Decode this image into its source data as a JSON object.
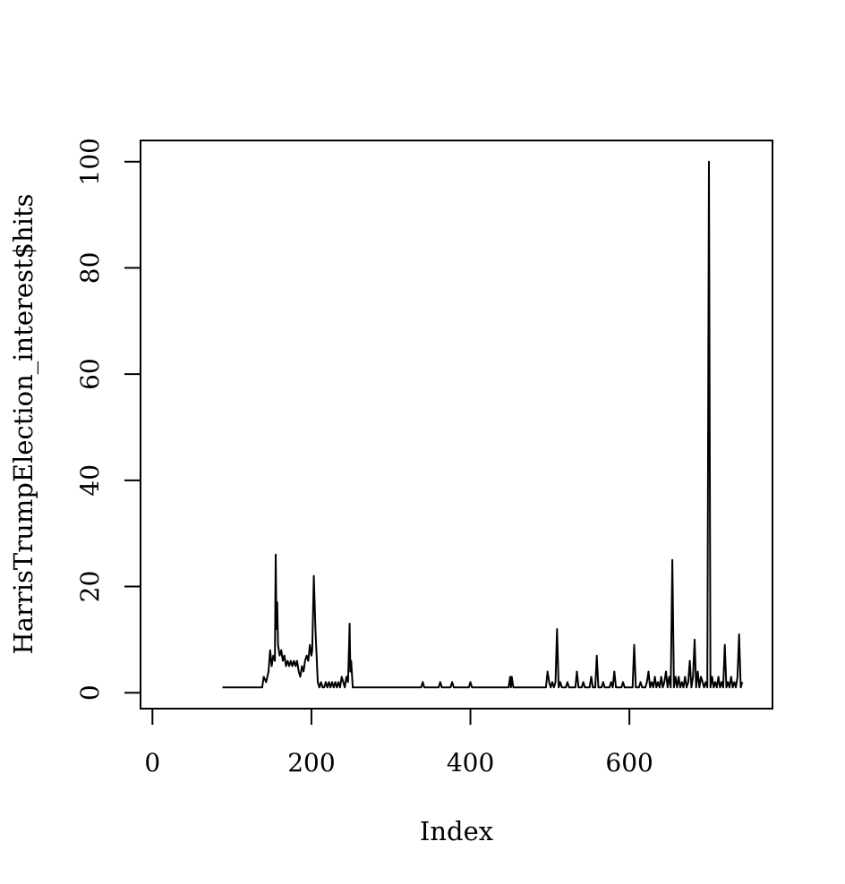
{
  "chart_data": {
    "type": "line",
    "title": "",
    "xlabel": "Index",
    "ylabel": "HarrisTrumpElection_interest$hits",
    "xlim": [
      -15,
      780
    ],
    "ylim": [
      -3,
      104
    ],
    "x_ticks": [
      0,
      200,
      400,
      600
    ],
    "y_ticks": [
      0,
      20,
      40,
      60,
      80,
      100
    ],
    "x_tick_labels": [
      "0",
      "200",
      "400",
      "600"
    ],
    "y_tick_labels": [
      "0",
      "20",
      "40",
      "60",
      "80",
      "100"
    ],
    "grid": false,
    "legend": "none",
    "line_color": "#000000",
    "series": [
      {
        "points": [
          [
            88,
            1
          ],
          [
            89,
            1
          ],
          [
            138,
            1
          ],
          [
            140,
            3
          ],
          [
            143,
            2
          ],
          [
            146,
            4
          ],
          [
            148,
            8
          ],
          [
            150,
            5
          ],
          [
            152,
            7
          ],
          [
            154,
            6
          ],
          [
            155,
            26
          ],
          [
            156,
            12
          ],
          [
            157,
            17
          ],
          [
            158,
            9
          ],
          [
            160,
            7
          ],
          [
            162,
            8
          ],
          [
            164,
            6
          ],
          [
            166,
            7
          ],
          [
            168,
            5
          ],
          [
            170,
            6
          ],
          [
            172,
            5
          ],
          [
            174,
            6
          ],
          [
            176,
            5
          ],
          [
            178,
            6
          ],
          [
            180,
            5
          ],
          [
            182,
            6
          ],
          [
            184,
            4
          ],
          [
            186,
            3
          ],
          [
            188,
            5
          ],
          [
            190,
            4
          ],
          [
            192,
            6
          ],
          [
            194,
            7
          ],
          [
            196,
            6
          ],
          [
            198,
            9
          ],
          [
            200,
            7
          ],
          [
            201,
            8
          ],
          [
            203,
            22
          ],
          [
            205,
            12
          ],
          [
            208,
            2
          ],
          [
            210,
            1
          ],
          [
            212,
            2
          ],
          [
            214,
            1
          ],
          [
            216,
            1
          ],
          [
            218,
            2
          ],
          [
            220,
            1
          ],
          [
            222,
            2
          ],
          [
            224,
            1
          ],
          [
            226,
            2
          ],
          [
            228,
            1
          ],
          [
            230,
            2
          ],
          [
            232,
            1
          ],
          [
            234,
            2
          ],
          [
            236,
            1
          ],
          [
            238,
            3
          ],
          [
            240,
            2
          ],
          [
            242,
            1
          ],
          [
            244,
            3
          ],
          [
            246,
            2
          ],
          [
            248,
            13
          ],
          [
            249,
            4
          ],
          [
            250,
            6
          ],
          [
            252,
            1
          ],
          [
            260,
            1
          ],
          [
            300,
            1
          ],
          [
            338,
            1
          ],
          [
            340,
            2
          ],
          [
            342,
            1
          ],
          [
            360,
            1
          ],
          [
            362,
            2
          ],
          [
            364,
            1
          ],
          [
            375,
            1
          ],
          [
            377,
            2
          ],
          [
            379,
            1
          ],
          [
            398,
            1
          ],
          [
            400,
            2
          ],
          [
            402,
            1
          ],
          [
            448,
            1
          ],
          [
            450,
            3
          ],
          [
            451,
            1
          ],
          [
            452,
            3
          ],
          [
            454,
            1
          ],
          [
            495,
            1
          ],
          [
            497,
            4
          ],
          [
            499,
            2
          ],
          [
            501,
            1
          ],
          [
            503,
            2
          ],
          [
            505,
            1
          ],
          [
            507,
            2
          ],
          [
            509,
            12
          ],
          [
            511,
            1
          ],
          [
            513,
            2
          ],
          [
            515,
            1
          ],
          [
            520,
            1
          ],
          [
            522,
            2
          ],
          [
            524,
            1
          ],
          [
            532,
            1
          ],
          [
            534,
            4
          ],
          [
            536,
            1
          ],
          [
            540,
            1
          ],
          [
            542,
            2
          ],
          [
            544,
            1
          ],
          [
            550,
            1
          ],
          [
            552,
            3
          ],
          [
            554,
            1
          ],
          [
            557,
            1
          ],
          [
            559,
            7
          ],
          [
            561,
            1
          ],
          [
            565,
            1
          ],
          [
            567,
            2
          ],
          [
            569,
            1
          ],
          [
            575,
            1
          ],
          [
            577,
            2
          ],
          [
            579,
            1
          ],
          [
            581,
            4
          ],
          [
            583,
            1
          ],
          [
            590,
            1
          ],
          [
            592,
            2
          ],
          [
            594,
            1
          ],
          [
            604,
            1
          ],
          [
            606,
            9
          ],
          [
            608,
            1
          ],
          [
            612,
            1
          ],
          [
            614,
            2
          ],
          [
            616,
            1
          ],
          [
            620,
            1
          ],
          [
            622,
            2
          ],
          [
            624,
            4
          ],
          [
            626,
            1
          ],
          [
            628,
            2
          ],
          [
            630,
            1
          ],
          [
            632,
            3
          ],
          [
            634,
            1
          ],
          [
            636,
            2
          ],
          [
            638,
            1
          ],
          [
            640,
            3
          ],
          [
            642,
            1
          ],
          [
            644,
            2
          ],
          [
            646,
            4
          ],
          [
            648,
            1
          ],
          [
            650,
            3
          ],
          [
            652,
            1
          ],
          [
            654,
            25
          ],
          [
            656,
            1
          ],
          [
            658,
            3
          ],
          [
            660,
            1
          ],
          [
            662,
            3
          ],
          [
            664,
            1
          ],
          [
            666,
            2
          ],
          [
            668,
            1
          ],
          [
            670,
            3
          ],
          [
            672,
            1
          ],
          [
            674,
            2
          ],
          [
            676,
            6
          ],
          [
            678,
            1
          ],
          [
            680,
            3
          ],
          [
            682,
            10
          ],
          [
            684,
            1
          ],
          [
            686,
            4
          ],
          [
            688,
            1
          ],
          [
            690,
            3
          ],
          [
            692,
            2
          ],
          [
            694,
            1
          ],
          [
            696,
            2
          ],
          [
            698,
            1
          ],
          [
            700,
            100
          ],
          [
            702,
            1
          ],
          [
            704,
            3
          ],
          [
            706,
            1
          ],
          [
            708,
            2
          ],
          [
            710,
            1
          ],
          [
            712,
            3
          ],
          [
            714,
            1
          ],
          [
            716,
            2
          ],
          [
            718,
            1
          ],
          [
            720,
            9
          ],
          [
            722,
            1
          ],
          [
            724,
            2
          ],
          [
            726,
            1
          ],
          [
            728,
            3
          ],
          [
            730,
            1
          ],
          [
            732,
            2
          ],
          [
            734,
            1
          ],
          [
            736,
            3
          ],
          [
            738,
            11
          ],
          [
            740,
            1
          ],
          [
            742,
            2
          ]
        ]
      }
    ]
  }
}
